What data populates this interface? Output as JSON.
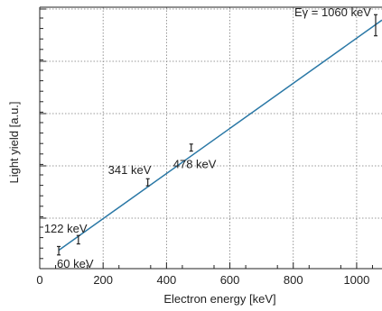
{
  "chart_data": {
    "type": "scatter",
    "xlabel": "Electron energy [keV]",
    "ylabel": "Light yield [a.u.]",
    "xlim": [
      0,
      1080
    ],
    "x_ticks": [
      0,
      200,
      400,
      600,
      800,
      1000
    ],
    "x_tick_labels": [
      "0",
      "200",
      "400",
      "600",
      "800",
      "1000"
    ],
    "grid": true,
    "series": [
      {
        "type": "scatter",
        "x": [
          60,
          122,
          341,
          478,
          1060
        ],
        "y": [
          0.038,
          0.085,
          0.33,
          0.478,
          1.0
        ],
        "err": [
          0.018,
          0.018,
          0.015,
          0.015,
          0.045
        ]
      },
      {
        "type": "line",
        "x": [
          60,
          1080
        ],
        "y": [
          0.04,
          1.022
        ]
      }
    ],
    "annotations": [
      {
        "text": "60 keV",
        "x": 60
      },
      {
        "text": "122 keV",
        "x": 122
      },
      {
        "text": "341 keV",
        "x": 341
      },
      {
        "text": "478 keV",
        "x": 478
      },
      {
        "text": "Eγ = 1060 keV",
        "x": 1060
      }
    ]
  }
}
